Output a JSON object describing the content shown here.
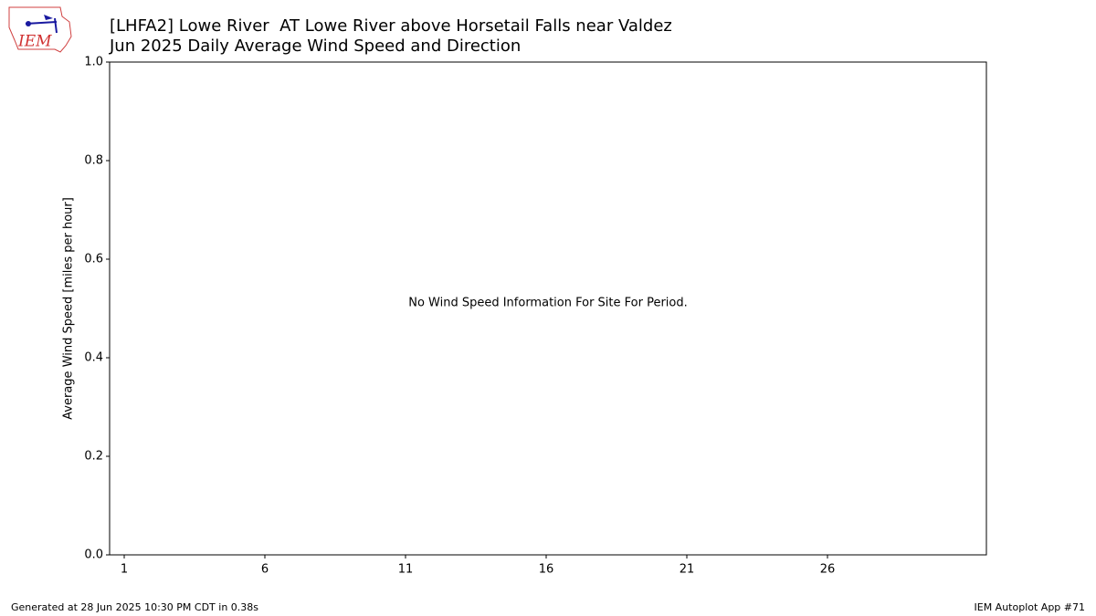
{
  "chart_data": {
    "type": "bar",
    "title": "[LHFA2] Lowe River  AT Lowe River above Horsetail Falls near Valdez",
    "subtitle": "Jun 2025 Daily Average Wind Speed and Direction",
    "ylabel": "Average Wind Speed [miles per hour]",
    "annotation": "No Wind Speed Information For Site For Period.",
    "logo_text": "IEM",
    "footer_left": "Generated at 28 Jun 2025 10:30 PM CDT in 0.38s",
    "footer_right": "IEM Autoplot App #71",
    "xlim": [
      0.48,
      31.65
    ],
    "xticks": [
      1,
      6,
      11,
      16,
      21,
      26
    ],
    "ylim": [
      0,
      1
    ],
    "yticks": [
      {
        "value": 0,
        "label": "0.0"
      },
      0.2,
      0.4,
      0.6,
      0.8,
      {
        "value": 1,
        "label": "1.0"
      }
    ],
    "grid": false
  }
}
